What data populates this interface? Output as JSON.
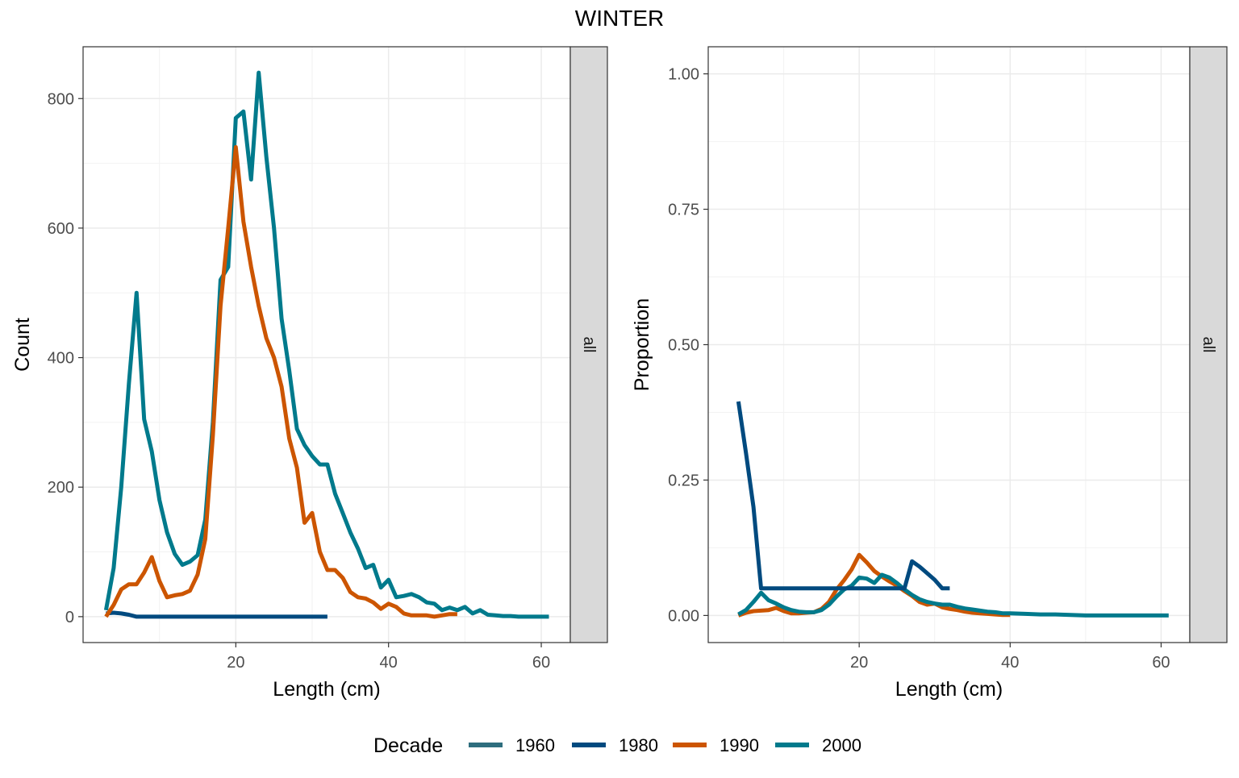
{
  "chart_data": {
    "type": "line",
    "title": "WINTER",
    "legend": {
      "title": "Decade",
      "placement": "bottom",
      "items": [
        {
          "name": "1960",
          "color": "#2E6E7E"
        },
        {
          "name": "1980",
          "color": "#004A7F"
        },
        {
          "name": "1990",
          "color": "#CC5500"
        },
        {
          "name": "2000",
          "color": "#007A8C"
        }
      ]
    },
    "panels": [
      {
        "strip": "all",
        "xlabel": "Length (cm)",
        "ylabel": "Count",
        "xlim": [
          0,
          63.8
        ],
        "ylim": [
          -40,
          880
        ],
        "xticks": [
          20,
          40,
          60
        ],
        "yticks": [
          0,
          200,
          400,
          600,
          800
        ],
        "ytick_labels": [
          "0",
          "200",
          "400",
          "600",
          "800"
        ],
        "grid": true,
        "series": [
          {
            "name": "1980",
            "color": "#004A7F",
            "x": [
              3,
              4,
              5,
              6,
              7,
              10,
              15,
              20,
              25,
              30,
              32
            ],
            "y": [
              5,
              6,
              5,
              3,
              0,
              0,
              0,
              0,
              0,
              0,
              0
            ]
          },
          {
            "name": "2000",
            "color": "#007A8C",
            "x": [
              3,
              4,
              5,
              6,
              7,
              8,
              9,
              10,
              11,
              12,
              13,
              14,
              15,
              16,
              17,
              18,
              19,
              20,
              21,
              22,
              23,
              24,
              25,
              26,
              27,
              28,
              29,
              30,
              31,
              32,
              33,
              34,
              35,
              36,
              37,
              38,
              39,
              40,
              41,
              42,
              43,
              44,
              45,
              46,
              47,
              48,
              49,
              50,
              51,
              52,
              53,
              54,
              55,
              56,
              57,
              58,
              59,
              60,
              61
            ],
            "y": [
              10,
              75,
              200,
              360,
              500,
              305,
              255,
              180,
              130,
              97,
              80,
              85,
              95,
              150,
              300,
              520,
              540,
              770,
              780,
              675,
              840,
              710,
              600,
              460,
              380,
              290,
              265,
              248,
              235,
              235,
              190,
              160,
              130,
              105,
              75,
              80,
              45,
              57,
              30,
              32,
              35,
              30,
              22,
              20,
              10,
              14,
              10,
              15,
              5,
              10,
              3,
              2,
              1,
              1,
              0,
              0,
              0,
              0,
              0
            ]
          },
          {
            "name": "1990",
            "color": "#CC5500",
            "x": [
              3,
              4,
              5,
              6,
              7,
              8,
              9,
              10,
              11,
              12,
              13,
              14,
              15,
              16,
              17,
              18,
              19,
              20,
              21,
              22,
              23,
              24,
              25,
              26,
              27,
              28,
              29,
              30,
              31,
              32,
              33,
              34,
              35,
              36,
              37,
              38,
              39,
              40,
              41,
              42,
              43,
              44,
              45,
              46,
              47,
              48,
              49
            ],
            "y": [
              0,
              18,
              42,
              50,
              50,
              68,
              92,
              55,
              30,
              33,
              35,
              40,
              65,
              120,
              280,
              480,
              600,
              725,
              610,
              540,
              480,
              430,
              400,
              355,
              275,
              230,
              145,
              160,
              100,
              72,
              72,
              60,
              38,
              30,
              28,
              22,
              12,
              20,
              15,
              5,
              2,
              2,
              2,
              0,
              2,
              4,
              4
            ]
          }
        ]
      },
      {
        "strip": "all",
        "xlabel": "Length (cm)",
        "ylabel": "Proportion",
        "xlim": [
          0,
          63.8
        ],
        "ylim": [
          -0.05,
          1.05
        ],
        "xticks": [
          20,
          40,
          60
        ],
        "yticks": [
          0,
          0.25,
          0.5,
          0.75,
          1.0
        ],
        "ytick_labels": [
          "0.00",
          "0.25",
          "0.50",
          "0.75",
          "1.00"
        ],
        "grid": true,
        "series": [
          {
            "name": "1990",
            "color": "#CC5500",
            "x": [
              4,
              5,
              6,
              7,
              8,
              9,
              10,
              11,
              12,
              13,
              14,
              15,
              16,
              17,
              18,
              19,
              20,
              21,
              22,
              23,
              24,
              25,
              26,
              27,
              28,
              29,
              30,
              31,
              32,
              33,
              34,
              35,
              36,
              37,
              38,
              39,
              40
            ],
            "y": [
              0.0,
              0.005,
              0.008,
              0.009,
              0.01,
              0.014,
              0.008,
              0.004,
              0.004,
              0.005,
              0.006,
              0.012,
              0.025,
              0.048,
              0.065,
              0.085,
              0.112,
              0.098,
              0.082,
              0.072,
              0.063,
              0.055,
              0.045,
              0.036,
              0.025,
              0.02,
              0.022,
              0.015,
              0.012,
              0.01,
              0.007,
              0.005,
              0.004,
              0.003,
              0.002,
              0.001,
              0.001
            ]
          },
          {
            "name": "2000",
            "color": "#007A8C",
            "x": [
              4,
              5,
              6,
              7,
              8,
              9,
              10,
              11,
              12,
              13,
              14,
              15,
              16,
              17,
              18,
              19,
              20,
              21,
              22,
              23,
              24,
              25,
              26,
              27,
              28,
              29,
              30,
              31,
              32,
              33,
              34,
              35,
              36,
              37,
              38,
              39,
              40,
              42,
              44,
              46,
              48,
              50,
              52,
              55,
              58,
              61
            ],
            "y": [
              0.002,
              0.01,
              0.025,
              0.042,
              0.028,
              0.022,
              0.015,
              0.01,
              0.007,
              0.006,
              0.006,
              0.01,
              0.02,
              0.035,
              0.048,
              0.055,
              0.07,
              0.068,
              0.06,
              0.075,
              0.07,
              0.06,
              0.048,
              0.038,
              0.03,
              0.025,
              0.022,
              0.02,
              0.02,
              0.016,
              0.013,
              0.011,
              0.009,
              0.007,
              0.006,
              0.004,
              0.004,
              0.003,
              0.002,
              0.002,
              0.001,
              0.0,
              0.0,
              0.0,
              0.0,
              0.0
            ]
          },
          {
            "name": "1980",
            "color": "#004A7F",
            "x": [
              4,
              5,
              6,
              7,
              10,
              15,
              20,
              25,
              26,
              27,
              28,
              29,
              30,
              31,
              32
            ],
            "y": [
              0.395,
              0.3,
              0.2,
              0.05,
              0.05,
              0.05,
              0.05,
              0.05,
              0.05,
              0.1,
              0.09,
              0.078,
              0.066,
              0.05,
              0.05
            ]
          }
        ]
      }
    ]
  }
}
